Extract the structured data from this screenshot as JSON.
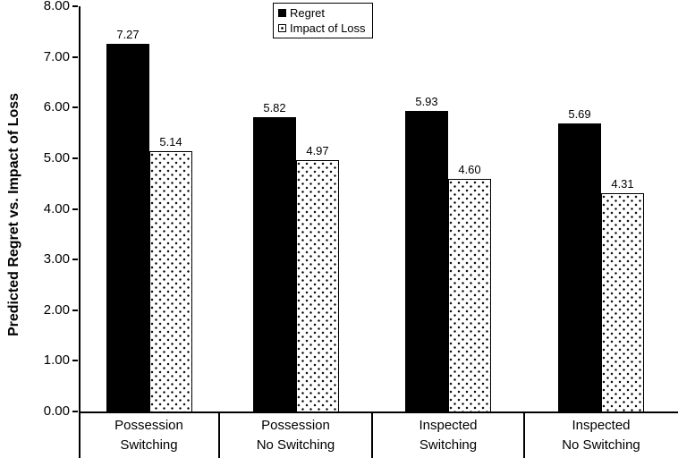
{
  "chart_data": {
    "type": "bar",
    "title": "",
    "xlabel": "",
    "ylabel": "Predicted Regret vs. Impact of Loss",
    "ylim": [
      0,
      8
    ],
    "grid": false,
    "legend_position": "top-center",
    "yticks": [
      0,
      1,
      2,
      3,
      4,
      5,
      6,
      7,
      8
    ],
    "ytick_labels": [
      "0.00",
      "1.00",
      "2.00",
      "3.00",
      "4.00",
      "5.00",
      "6.00",
      "7.00",
      "8.00"
    ],
    "categories": [
      "Possession Switching",
      "Possession No Switching",
      "Inspected Switching",
      "Inspected No Switching"
    ],
    "category_lines": [
      [
        "Possession",
        "Switching"
      ],
      [
        "Possession",
        "No Switching"
      ],
      [
        "Inspected",
        "Switching"
      ],
      [
        "Inspected",
        "No Switching"
      ]
    ],
    "series": [
      {
        "name": "Regret",
        "pattern": "solid-black",
        "values": [
          7.27,
          5.82,
          5.93,
          5.69
        ],
        "value_labels": [
          "7.27",
          "5.82",
          "5.93",
          "5.69"
        ]
      },
      {
        "name": "Impact of Loss",
        "pattern": "dotted-white",
        "values": [
          5.14,
          4.97,
          4.6,
          4.31
        ],
        "value_labels": [
          "5.14",
          "4.97",
          "4.60",
          "4.31"
        ]
      }
    ]
  },
  "colors": {
    "bar_solid": "#000000",
    "bar_dotted_fill": "#ffffff",
    "dot": "#000000",
    "axis": "#000000",
    "text": "#000000",
    "background": "#ffffff"
  }
}
